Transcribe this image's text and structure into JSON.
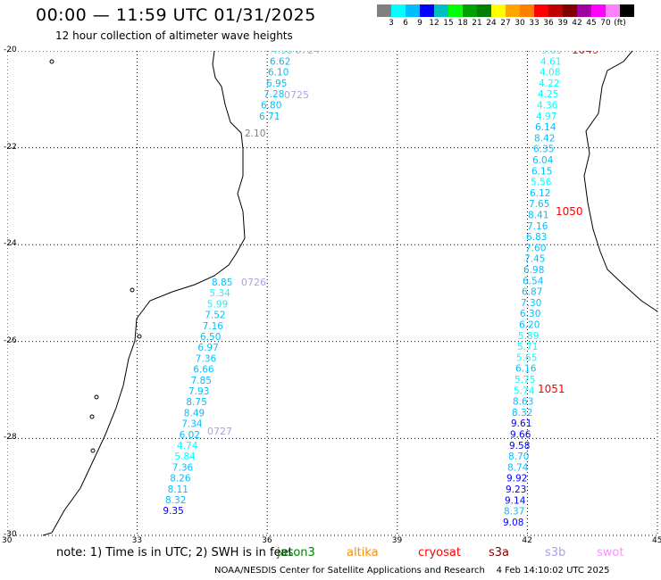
{
  "title": "00:00 — 11:59 UTC 01/31/2025",
  "subtitle": "12 hour collection of altimeter wave heights",
  "scale": {
    "colors": [
      "#808080",
      "#00ffff",
      "#00bfff",
      "#0000ff",
      "#00bfbf",
      "#00ff00",
      "#00a000",
      "#008000",
      "#ffff00",
      "#ffa500",
      "#ff8000",
      "#ff0000",
      "#c00000",
      "#800000",
      "#a000a0",
      "#ff00ff",
      "#ff80ff",
      "#000000"
    ],
    "labels": [
      "3",
      "6",
      "9",
      "12",
      "15",
      "18",
      "21",
      "24",
      "27",
      "30",
      "33",
      "36",
      "39",
      "42",
      "45",
      "70",
      "(ft)"
    ]
  },
  "axes": {
    "lon_ticks": [
      "30",
      "33",
      "36",
      "39",
      "42",
      "45"
    ],
    "lat_ticks": [
      "-20",
      "-22",
      "-24",
      "-26",
      "-28",
      "-30"
    ]
  },
  "track1": {
    "values": [
      "4.58",
      "6.62",
      "6.10",
      "6.95",
      "7.28",
      "6.80",
      "6.71"
    ],
    "grey_value": "2.10",
    "labels": [
      "0724",
      "0725"
    ]
  },
  "track2": {
    "values": [
      "8.85",
      "5.34",
      "5.99",
      "7.52",
      "7.16",
      "6.50",
      "6.97",
      "7.36",
      "6.66",
      "7.85",
      "7.93",
      "8.75",
      "8.49",
      "7.34",
      "6.02",
      "4.74",
      "5.84",
      "7.36",
      "8.26",
      "8.11",
      "8.32",
      "9.35"
    ],
    "labels": [
      "0726",
      "0727"
    ]
  },
  "track3": {
    "values": [
      "5.09",
      "4.61",
      "4.08",
      "4.22",
      "4.25",
      "4.36",
      "4.97",
      "6.14",
      "8.42",
      "6.35",
      "6.04",
      "6.15",
      "5.56",
      "6.12",
      "7.65",
      "8.41",
      "7.16",
      "6.83",
      "7.60",
      "7.45",
      "6.98",
      "6.54",
      "6.87",
      "7.30",
      "6.30",
      "6.20",
      "5.89",
      "5.71",
      "5.65",
      "6.16",
      "5.75",
      "5.74",
      "8.63",
      "8.32",
      "9.61",
      "9.66",
      "9.58",
      "8.70",
      "8.74",
      "9.92",
      "9.23",
      "9.14",
      "8.37",
      "9.08"
    ],
    "labels": [
      "1049",
      "1050",
      "1051"
    ]
  },
  "footnote": "note: 1) Time is in UTC; 2) SWH is in feet",
  "satellites": [
    {
      "name": "jason3",
      "color": "#008000"
    },
    {
      "name": "altika",
      "color": "#ff8c00"
    },
    {
      "name": "cryosat",
      "color": "#ff0000"
    },
    {
      "name": "s3a",
      "color": "#800000"
    },
    {
      "name": "s3b",
      "color": "#b0a0e0"
    },
    {
      "name": "swot",
      "color": "#ff90ff"
    }
  ],
  "credit": "NOAA/NESDIS Center for Satellite Applications and Research",
  "timestamp": "4 Feb 14:10:02 UTC 2025"
}
